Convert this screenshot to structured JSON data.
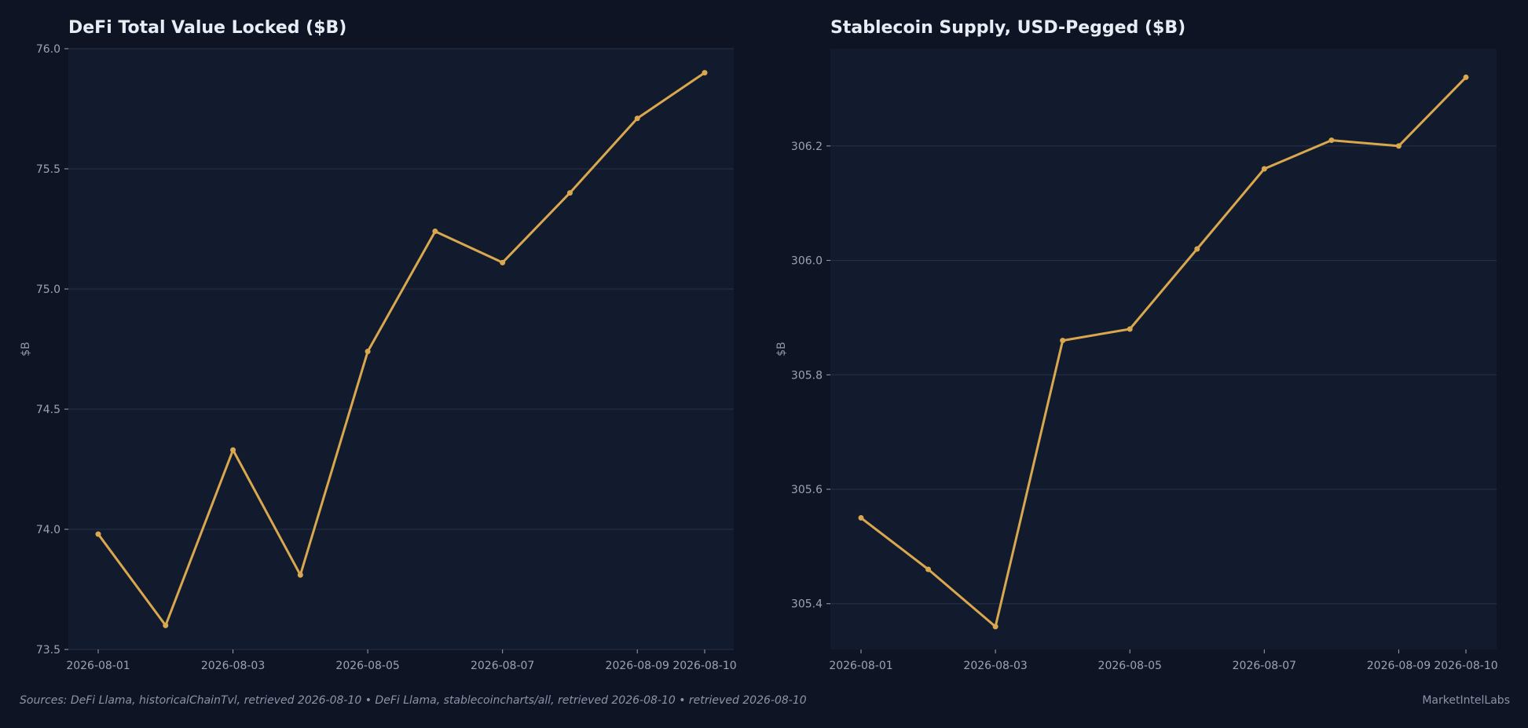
{
  "colors": {
    "background": "#0f1425",
    "plot_background": "#121b2e",
    "grid": "#263147",
    "line": "#d9a84e",
    "text": "#e8ecf4",
    "muted": "#9aa3b5"
  },
  "footer": {
    "sources": "Sources: DeFi Llama, historicalChainTvl, retrieved 2026-08-10  •  DeFi Llama, stablecoincharts/all, retrieved 2026-08-10  •  retrieved 2026-08-10",
    "brand": "MarketIntelLabs"
  },
  "chart_data": [
    {
      "type": "line",
      "title": "DeFi Total Value Locked ($B)",
      "xlabel": "",
      "ylabel": "$B",
      "x": [
        "2026-08-01",
        "2026-08-02",
        "2026-08-03",
        "2026-08-04",
        "2026-08-05",
        "2026-08-06",
        "2026-08-07",
        "2026-08-08",
        "2026-08-09",
        "2026-08-10"
      ],
      "values": [
        73.98,
        73.6,
        74.33,
        73.81,
        74.74,
        75.24,
        75.11,
        75.4,
        75.71,
        75.9
      ],
      "ylim": [
        73.5,
        76.0
      ],
      "yticks": [
        "73.5",
        "74.0",
        "74.5",
        "75.0",
        "75.5",
        "76.0"
      ],
      "xticks": [
        "2026-08-01",
        "2026-08-03",
        "2026-08-05",
        "2026-08-07",
        "2026-08-09",
        "2026-08-10"
      ],
      "grid": "horizontal",
      "legend": "none"
    },
    {
      "type": "line",
      "title": "Stablecoin Supply, USD-Pegged ($B)",
      "xlabel": "",
      "ylabel": "$B",
      "x": [
        "2026-08-01",
        "2026-08-02",
        "2026-08-03",
        "2026-08-04",
        "2026-08-05",
        "2026-08-06",
        "2026-08-07",
        "2026-08-08",
        "2026-08-09",
        "2026-08-10"
      ],
      "values": [
        305.55,
        305.46,
        305.36,
        305.86,
        305.88,
        306.02,
        306.16,
        306.21,
        306.2,
        306.32
      ],
      "ylim": [
        305.32,
        306.37
      ],
      "yticks": [
        "305.4",
        "305.6",
        "305.8",
        "306.0",
        "306.2"
      ],
      "xticks": [
        "2026-08-01",
        "2026-08-03",
        "2026-08-05",
        "2026-08-07",
        "2026-08-09",
        "2026-08-10"
      ],
      "grid": "horizontal",
      "legend": "none"
    }
  ]
}
